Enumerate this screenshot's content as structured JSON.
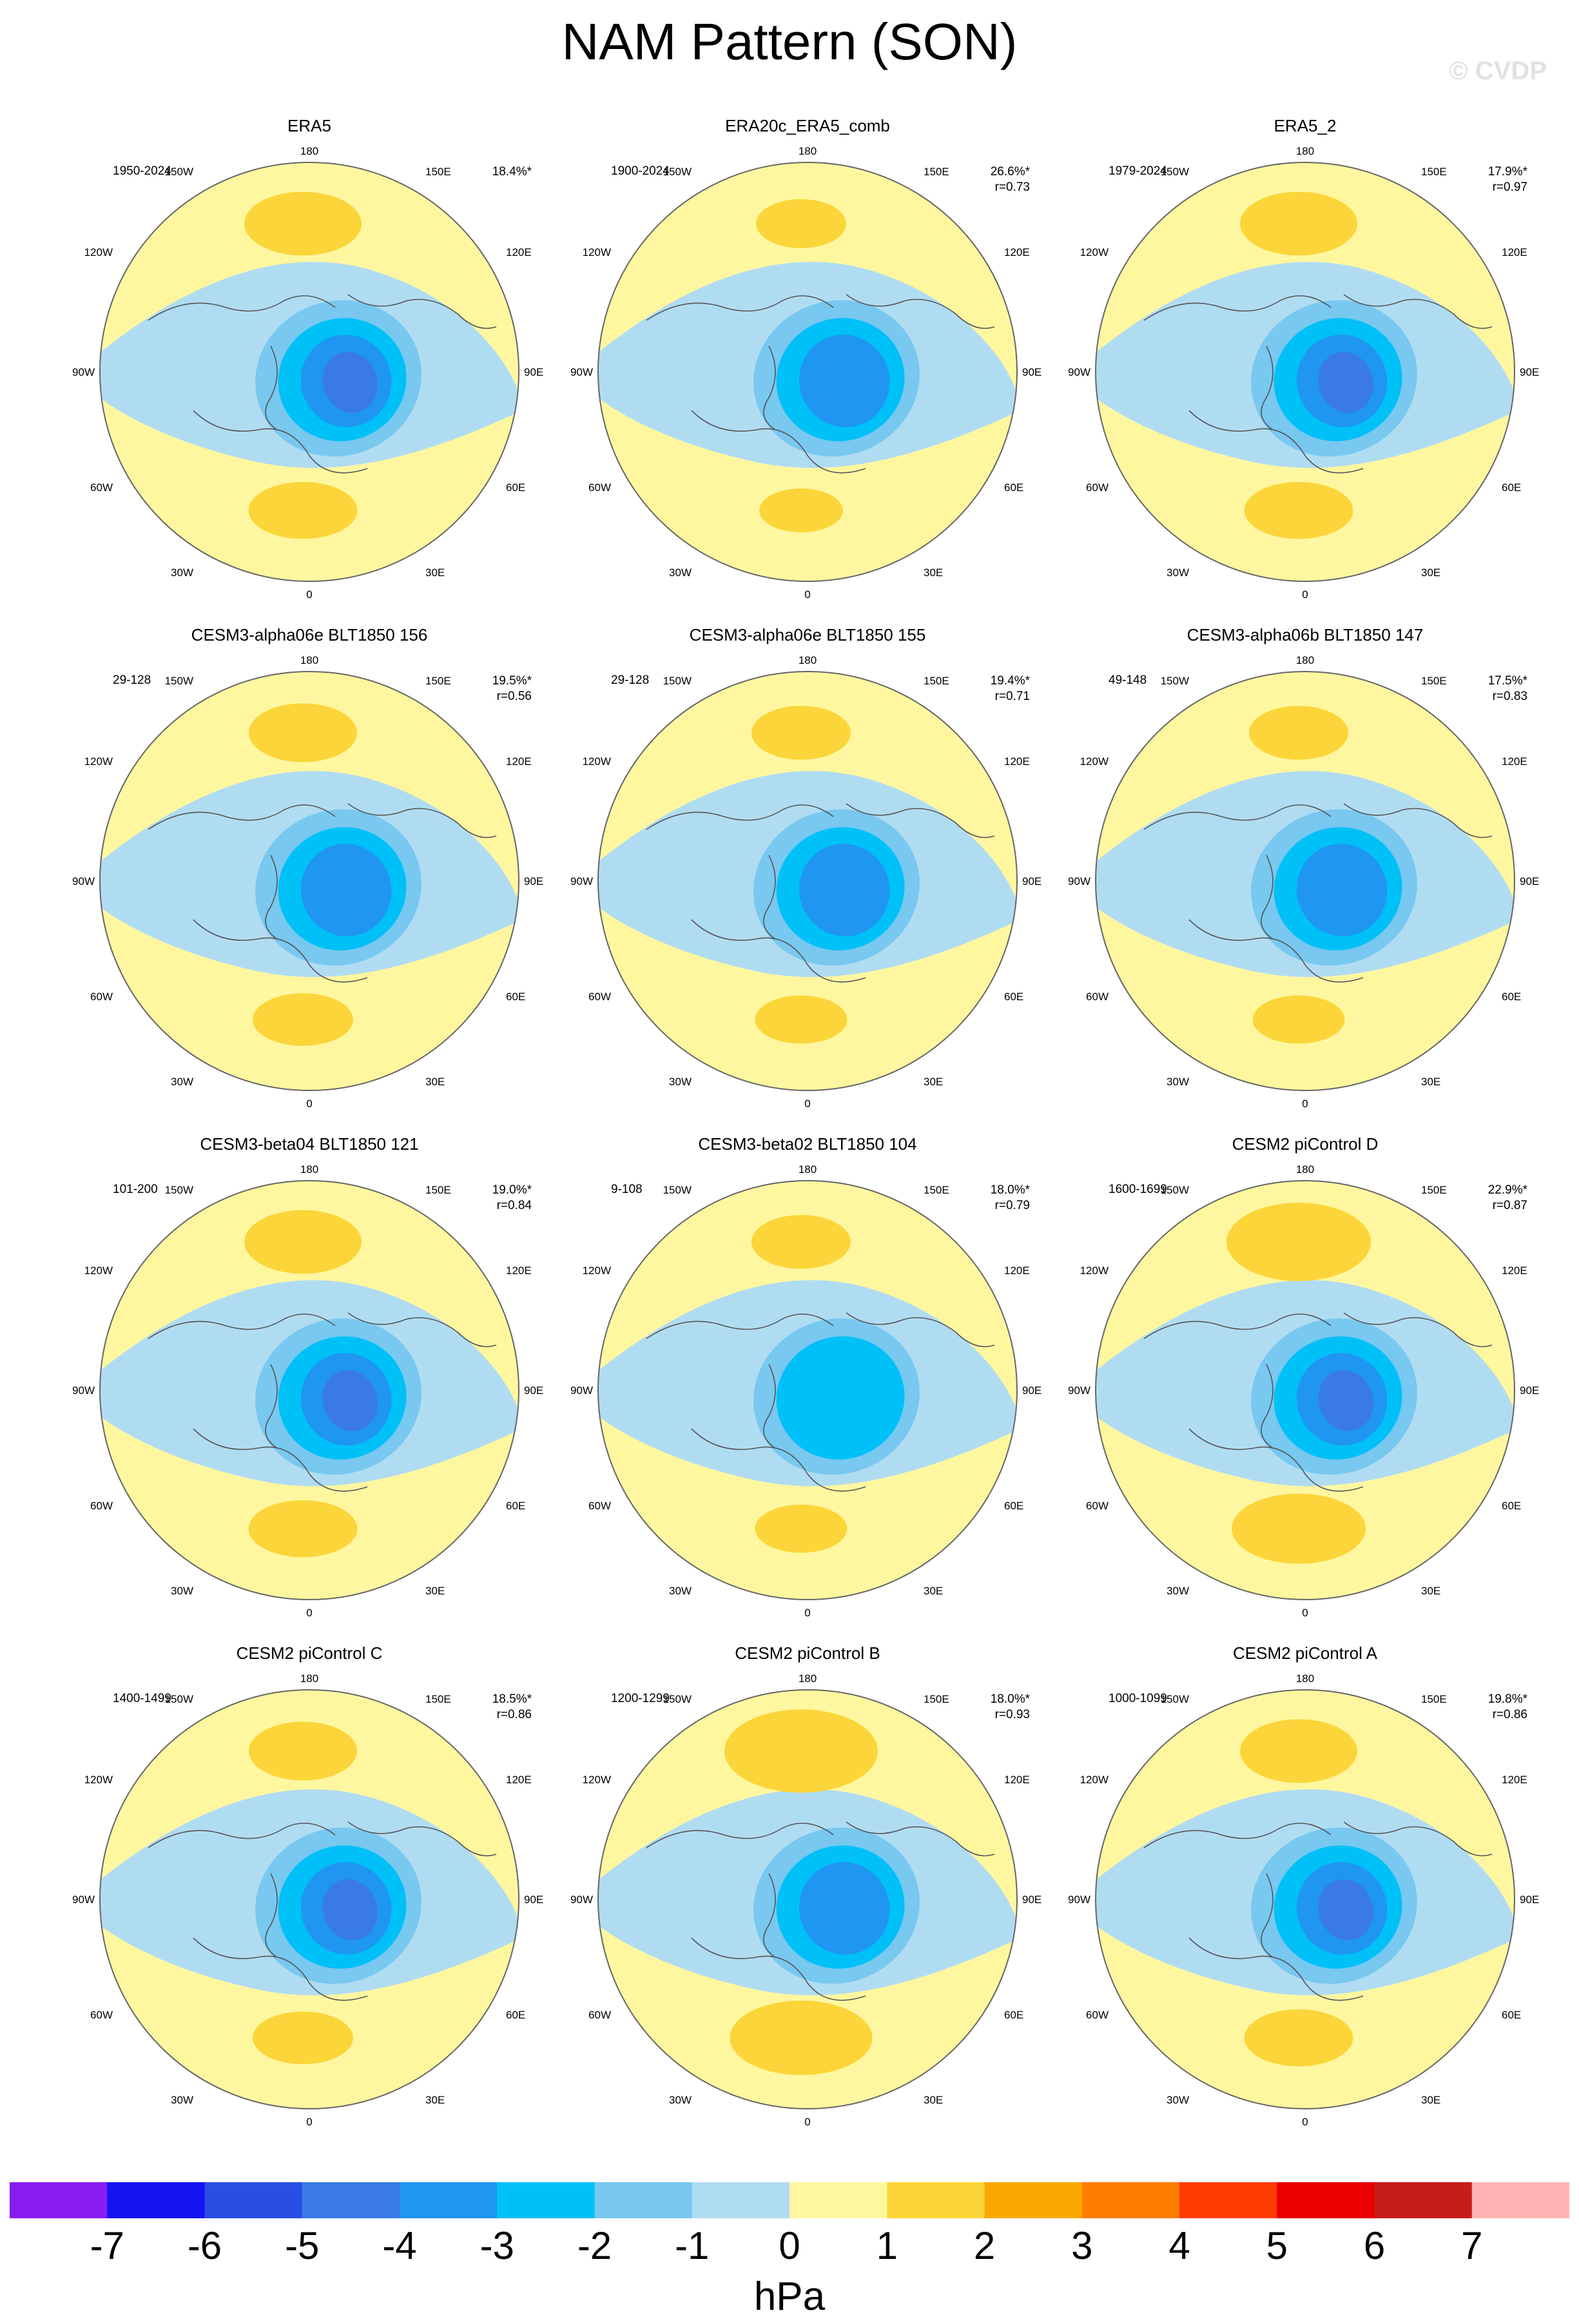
{
  "title": "NAM Pattern (SON)",
  "watermark": "© CVDP",
  "lon_labels": {
    "top": "180",
    "bottom": "0",
    "upper_left": "150W",
    "upper_right": "150E",
    "mid_upper_left": "120W",
    "mid_upper_right": "120E",
    "left": "90W",
    "right": "90E",
    "mid_lower_left": "60W",
    "mid_lower_right": "60E",
    "lower_left": "30W",
    "lower_right": "30E"
  },
  "panels": [
    {
      "title": "ERA5",
      "years": "1950-2024",
      "pct": "18.4%*",
      "r": "",
      "min_level": -5,
      "pos_strength": 1.3
    },
    {
      "title": "ERA20c_ERA5_comb",
      "years": "1900-2024",
      "pct": "26.6%*",
      "r": "r=0.73",
      "min_level": -4,
      "pos_strength": 1.0
    },
    {
      "title": "ERA5_2",
      "years": "1979-2024",
      "pct": "17.9%*",
      "r": "r=0.97",
      "min_level": -5,
      "pos_strength": 1.3
    },
    {
      "title": "CESM3-alpha06e BLT1850 156",
      "years": "29-128",
      "pct": "19.5%*",
      "r": "r=0.56",
      "min_level": -4,
      "pos_strength": 1.2
    },
    {
      "title": "CESM3-alpha06e BLT1850 155",
      "years": "29-128",
      "pct": "19.4%*",
      "r": "r=0.71",
      "min_level": -4,
      "pos_strength": 1.1
    },
    {
      "title": "CESM3-alpha06b BLT1850 147",
      "years": "49-148",
      "pct": "17.5%*",
      "r": "r=0.83",
      "min_level": -4,
      "pos_strength": 1.1
    },
    {
      "title": "CESM3-beta04 BLT1850 121",
      "years": "101-200",
      "pct": "19.0%*",
      "r": "r=0.84",
      "min_level": -5,
      "pos_strength": 1.3
    },
    {
      "title": "CESM3-beta02 BLT1850 104",
      "years": "9-108",
      "pct": "18.0%*",
      "r": "r=0.79",
      "min_level": -3,
      "pos_strength": 1.1
    },
    {
      "title": "CESM2 piControl D",
      "years": "1600-1699",
      "pct": "22.9%*",
      "r": "r=0.87",
      "min_level": -5,
      "pos_strength": 1.6
    },
    {
      "title": "CESM2 piControl C",
      "years": "1400-1499",
      "pct": "18.5%*",
      "r": "r=0.86",
      "min_level": -5,
      "pos_strength": 1.2
    },
    {
      "title": "CESM2 piControl B",
      "years": "1200-1299",
      "pct": "18.0%*",
      "r": "r=0.93",
      "min_level": -4,
      "pos_strength": 1.7
    },
    {
      "title": "CESM2 piControl A",
      "years": "1000-1099",
      "pct": "19.8%*",
      "r": "r=0.86",
      "min_level": -5,
      "pos_strength": 1.3
    }
  ],
  "colorbar": {
    "labels": [
      "-7",
      "-6",
      "-5",
      "-4",
      "-3",
      "-2",
      "-1",
      "0",
      "1",
      "2",
      "3",
      "4",
      "5",
      "6",
      "7"
    ],
    "colors": [
      "#8b1cf0",
      "#1414f2",
      "#2a4ee4",
      "#3a7ae8",
      "#1e96f2",
      "#00c0f8",
      "#78c8f0",
      "#b0dcf2",
      "#fff7a0",
      "#fcd53a",
      "#fca800",
      "#ff7d00",
      "#ff3c00",
      "#ea0000",
      "#c81c1c",
      "#ffb4b4"
    ],
    "units": "hPa"
  }
}
